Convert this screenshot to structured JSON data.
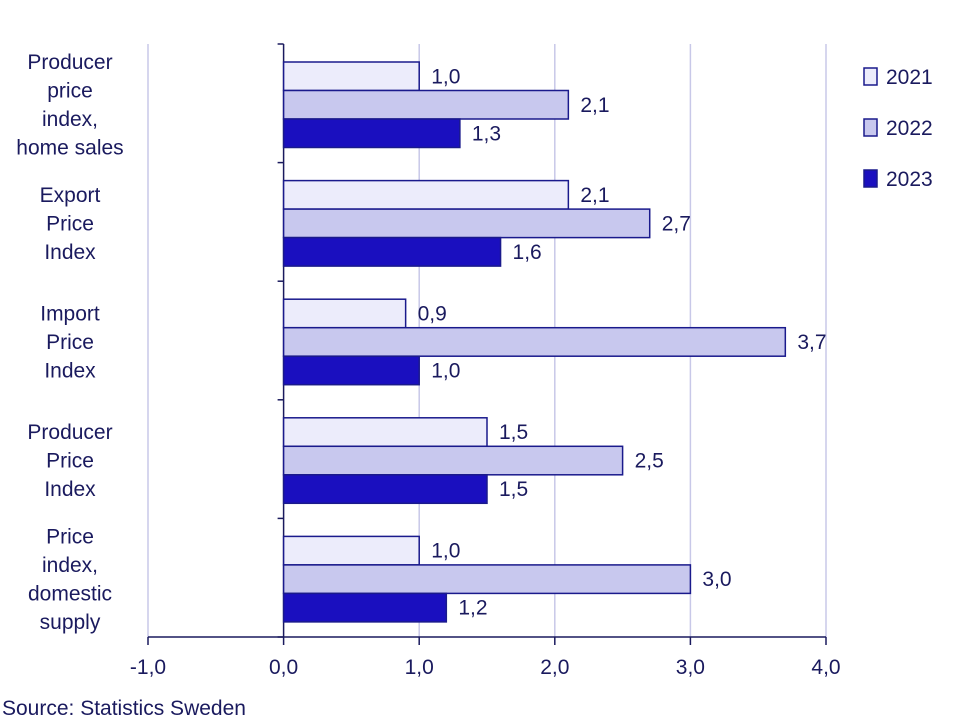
{
  "chart_data": {
    "type": "bar",
    "orientation": "horizontal",
    "categories": [
      [
        "Producer",
        "price",
        "index,",
        "home sales"
      ],
      [
        "Export",
        "Price",
        "Index"
      ],
      [
        "Import",
        "Price",
        "Index"
      ],
      [
        "Producer",
        "Price",
        "Index"
      ],
      [
        "Price",
        "index,",
        "domestic",
        "supply"
      ]
    ],
    "series": [
      {
        "name": "2021",
        "values": [
          1.0,
          2.1,
          0.9,
          1.5,
          1.0
        ],
        "color": "#ececfb"
      },
      {
        "name": "2022",
        "values": [
          2.1,
          2.7,
          3.7,
          2.5,
          3.0
        ],
        "color": "#c8c8ee"
      },
      {
        "name": "2023",
        "values": [
          1.3,
          1.6,
          1.0,
          1.5,
          1.2
        ],
        "color": "#1a0fbf"
      }
    ],
    "value_labels": [
      [
        "1,0",
        "2,1",
        "0,9",
        "1,5",
        "1,0"
      ],
      [
        "2,1",
        "2,7",
        "3,7",
        "2,5",
        "3,0"
      ],
      [
        "1,3",
        "1,6",
        "1,0",
        "1,5",
        "1,2"
      ]
    ],
    "xlim": [
      -1.0,
      4.0
    ],
    "xticks": [
      -1.0,
      0.0,
      1.0,
      2.0,
      3.0,
      4.0
    ],
    "xtick_labels": [
      "-1,0",
      "0,0",
      "1,0",
      "2,0",
      "3,0",
      "4,0"
    ],
    "grid": "vertical",
    "legend_position": "top-right",
    "title": "",
    "xlabel": "",
    "ylabel": ""
  },
  "colors": {
    "text": "#1a1a5e",
    "bar_border": "#1a1a8c",
    "grid": "#c8c8e8",
    "axis": "#1a1a5e"
  },
  "source": "Source: Statistics Sweden"
}
